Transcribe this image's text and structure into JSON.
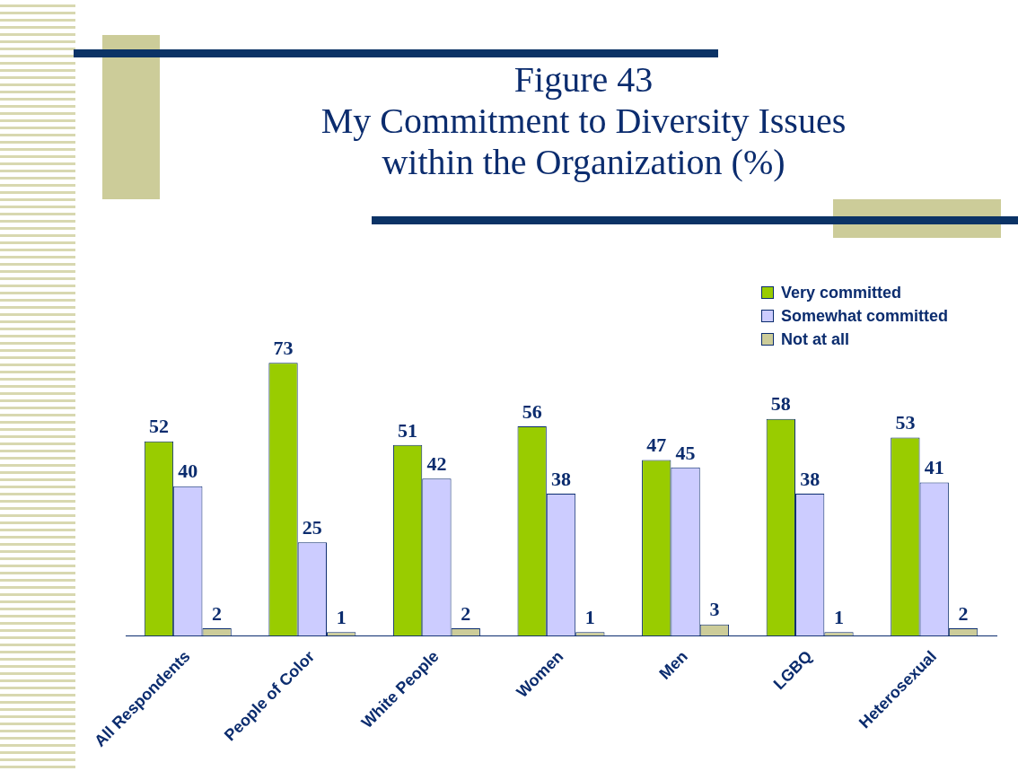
{
  "chart_data": {
    "type": "bar",
    "title": "Figure 43\nMy Commitment to Diversity Issues\nwithin the Organization (%)",
    "categories": [
      "All Respondents",
      "People of Color",
      "White People",
      "Women",
      "Men",
      "LGBQ",
      "Heterosexual"
    ],
    "series": [
      {
        "name": "Very committed",
        "color": "#99cc00",
        "values": [
          52,
          73,
          51,
          56,
          47,
          58,
          53
        ]
      },
      {
        "name": "Somewhat committed",
        "color": "#ccccff",
        "values": [
          40,
          25,
          42,
          38,
          45,
          38,
          41
        ]
      },
      {
        "name": "Not at all",
        "color": "#cccc99",
        "values": [
          2,
          1,
          2,
          1,
          3,
          1,
          2
        ]
      }
    ],
    "data_labels": true,
    "legend": "top right",
    "grid": false,
    "tick_labels": "x"
  }
}
